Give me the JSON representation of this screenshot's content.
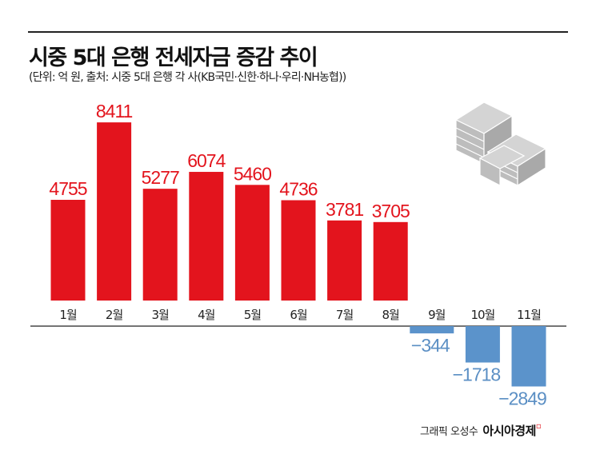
{
  "title": "시중 5대 은행 전세자금 증감 추이",
  "subtitle": "(단위: 억 원, 출처: 시중 5대 은행 각 사(KB국민·신한·하나·우리·NH농협))",
  "credit": {
    "author": "그래픽 오성수",
    "publisher": "아시아경제"
  },
  "icon": "money-stack-icon",
  "colors": {
    "positive": "#e3141d",
    "negative": "#5b93cb",
    "negative_label": "#5b8fc4"
  },
  "chart_data": {
    "type": "bar",
    "categories": [
      "1월",
      "2월",
      "3월",
      "4월",
      "5월",
      "6월",
      "7월",
      "8월",
      "9월",
      "10월",
      "11월"
    ],
    "values": [
      4755,
      8411,
      5277,
      6074,
      5460,
      4736,
      3781,
      3705,
      -344,
      -1718,
      -2849
    ],
    "labels": [
      "4755",
      "8411",
      "5277",
      "6074",
      "5460",
      "4736",
      "3781",
      "3705",
      "−344",
      "−1718",
      "−2849"
    ],
    "title": "시중 5대 은행 전세자금 증감 추이",
    "xlabel": "",
    "ylabel": "",
    "grid": false
  }
}
